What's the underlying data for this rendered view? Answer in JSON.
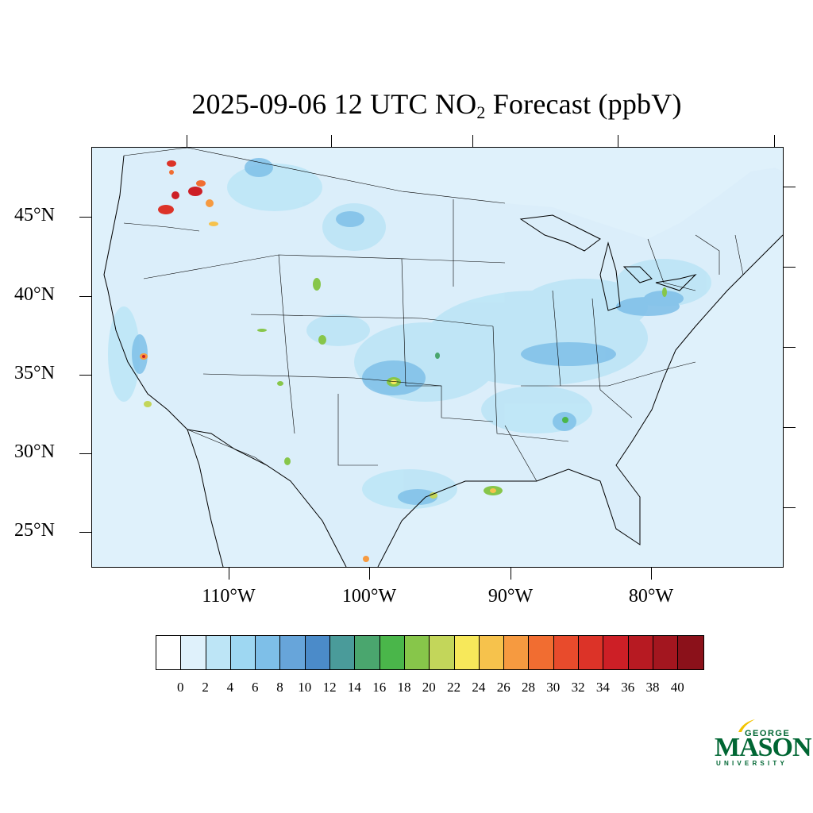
{
  "title": {
    "prefix": "2025-09-06 12 UTC NO",
    "subscript": "2",
    "suffix": " Forecast (ppbV)"
  },
  "map": {
    "latitude_labels": [
      "45°N",
      "40°N",
      "35°N",
      "30°N",
      "25°N"
    ],
    "longitude_labels": [
      "110°W",
      "100°W",
      "90°W",
      "80°W"
    ],
    "ocean_color": "#dff1fb",
    "boundary_color": "#000000"
  },
  "colorbar": {
    "tick_labels": [
      "0",
      "2",
      "4",
      "6",
      "8",
      "10",
      "12",
      "14",
      "16",
      "18",
      "20",
      "22",
      "24",
      "26",
      "28",
      "30",
      "32",
      "34",
      "36",
      "38",
      "40"
    ],
    "colors": [
      "#ffffff",
      "#dff1fb",
      "#bde5f6",
      "#9ed7f2",
      "#7ebfe8",
      "#67a5da",
      "#4b8bc9",
      "#4a9b9a",
      "#4aa66e",
      "#4ab64a",
      "#87c64a",
      "#c3d65a",
      "#f7e85a",
      "#f6c24c",
      "#f69a40",
      "#f16d31",
      "#e84b2c",
      "#dc3328",
      "#cd1f26",
      "#b71a22",
      "#a3161f",
      "#8b111a"
    ]
  },
  "logo": {
    "line1": "GEORGE",
    "line2": "MASON",
    "line3": "UNIVERSITY"
  }
}
